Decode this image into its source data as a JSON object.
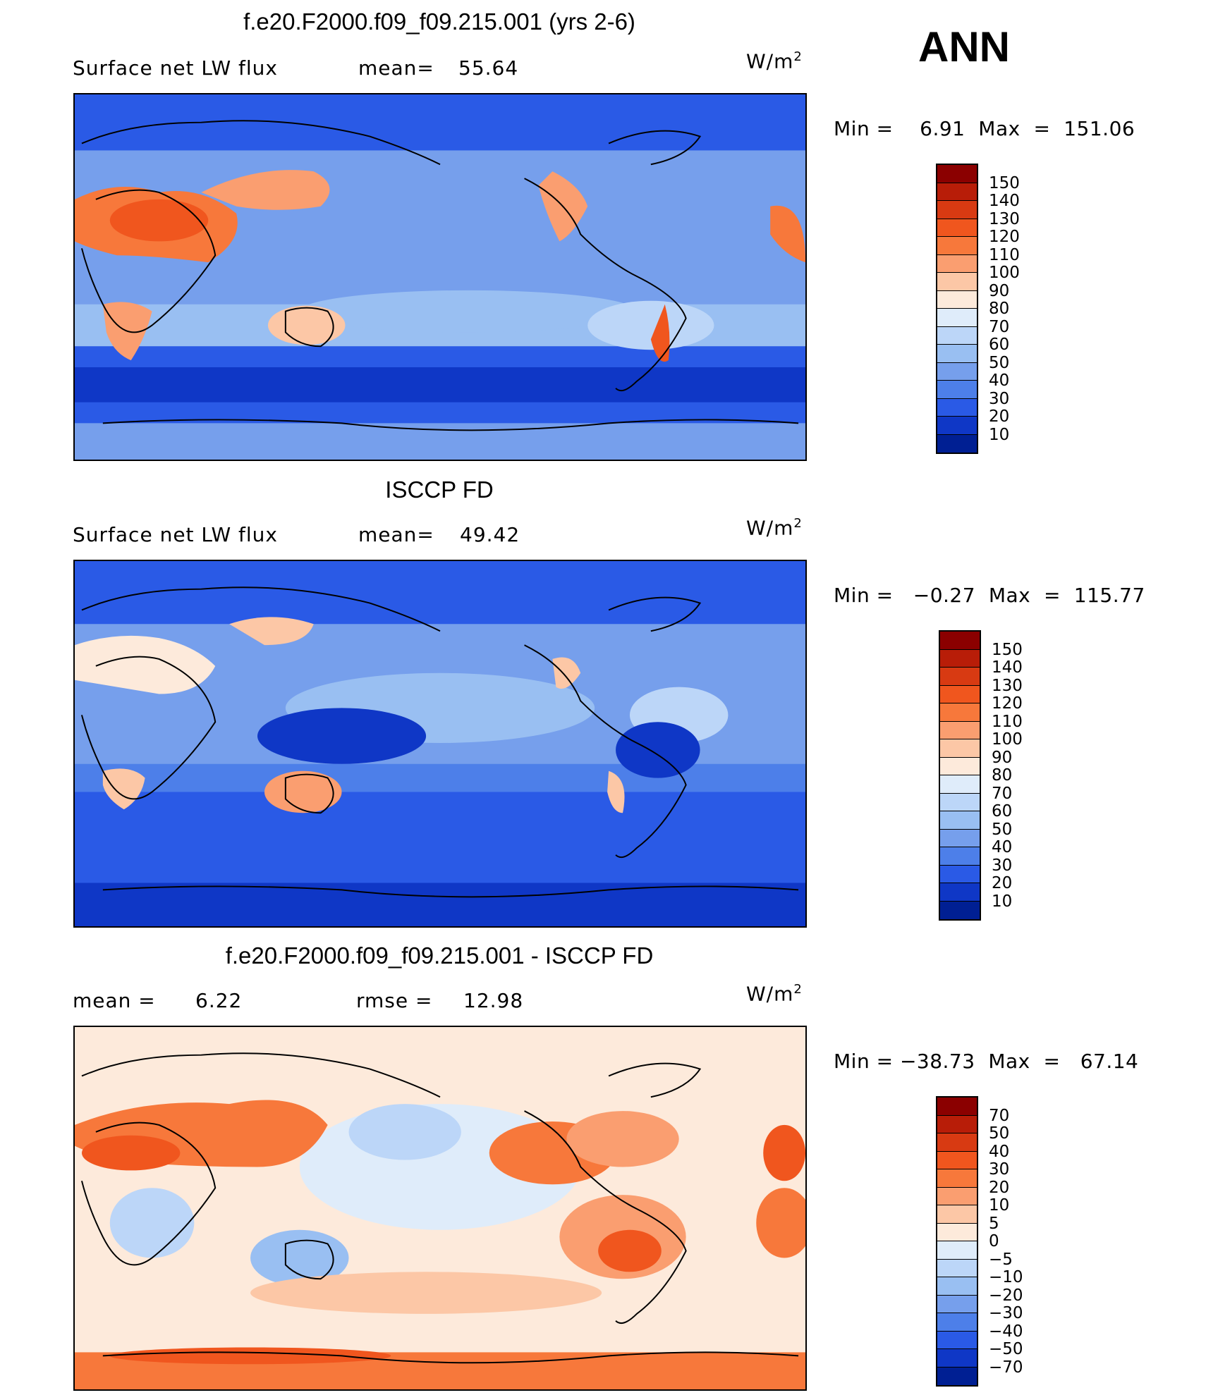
{
  "season": "ANN",
  "panels": [
    {
      "title": "f.e20.F2000.f09_f09.215.001 (yrs 2-6)",
      "left_label": "Surface net LW flux",
      "stat1": "mean=",
      "stat1_value": "55.64",
      "stat2": "",
      "stat2_value": "",
      "units": "W/m",
      "units_sup": "2",
      "minmax": "Min =    6.91  Max  =  151.06",
      "colorbar_labels": [
        "150",
        "140",
        "130",
        "120",
        "110",
        "100",
        "90",
        "80",
        "70",
        "60",
        "50",
        "40",
        "30",
        "20",
        "10"
      ],
      "colorbar_colors": [
        "#8b0000",
        "#b81d08",
        "#d83a12",
        "#f0561e",
        "#f7783b",
        "#fa9e70",
        "#fcc7a6",
        "#fdeadb",
        "#dfecfa",
        "#bcd6f8",
        "#99bff2",
        "#769fec",
        "#4d7fe9",
        "#2a5ae6",
        "#0f37c6",
        "#001f93"
      ]
    },
    {
      "title": "ISCCP FD",
      "left_label": "Surface net LW flux",
      "stat1": "mean=",
      "stat1_value": "49.42",
      "stat2": "",
      "stat2_value": "",
      "units": "W/m",
      "units_sup": "2",
      "minmax": "Min =   −0.27  Max  =  115.77",
      "colorbar_labels": [
        "150",
        "140",
        "130",
        "120",
        "110",
        "100",
        "90",
        "80",
        "70",
        "60",
        "50",
        "40",
        "30",
        "20",
        "10"
      ],
      "colorbar_colors": [
        "#8b0000",
        "#b81d08",
        "#d83a12",
        "#f0561e",
        "#f7783b",
        "#fa9e70",
        "#fcc7a6",
        "#fdeadb",
        "#dfecfa",
        "#bcd6f8",
        "#99bff2",
        "#769fec",
        "#4d7fe9",
        "#2a5ae6",
        "#0f37c6",
        "#001f93"
      ]
    },
    {
      "title": "f.e20.F2000.f09_f09.215.001 - ISCCP FD",
      "left_label": "mean =",
      "stat1": "",
      "stat1_value": "6.22",
      "stat2": "rmse =",
      "stat2_value": "12.98",
      "units": "W/m",
      "units_sup": "2",
      "minmax": "Min = −38.73  Max  =   67.14",
      "colorbar_labels": [
        "70",
        "50",
        "40",
        "30",
        "20",
        "10",
        "5",
        "0",
        "−5",
        "−10",
        "−20",
        "−30",
        "−40",
        "−50",
        "−70"
      ],
      "colorbar_colors": [
        "#8b0000",
        "#b81d08",
        "#d83a12",
        "#f0561e",
        "#f7783b",
        "#fa9e70",
        "#fcc7a6",
        "#fdeadb",
        "#dfecfa",
        "#bcd6f8",
        "#99bff2",
        "#769fec",
        "#4d7fe9",
        "#2a5ae6",
        "#0f37c6",
        "#001f93"
      ]
    }
  ]
}
